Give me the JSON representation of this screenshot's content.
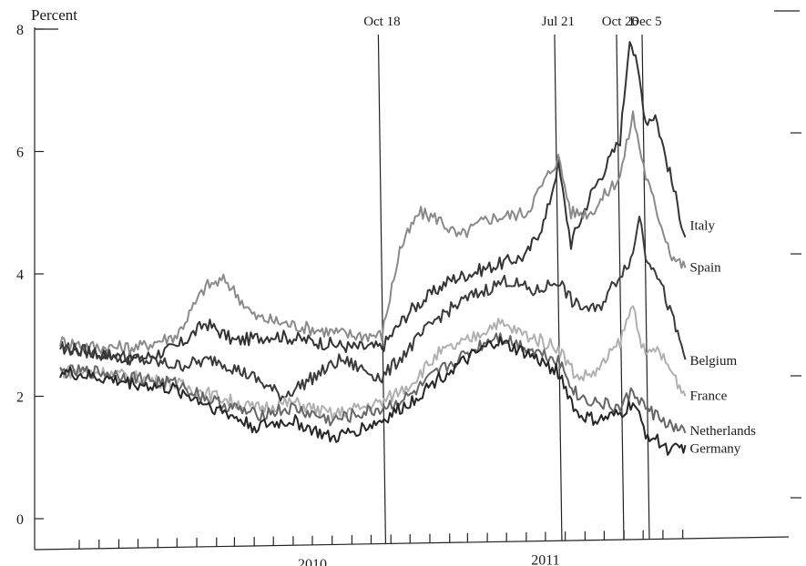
{
  "chart_data": {
    "type": "line",
    "title": "",
    "ylabel": "Percent",
    "xlabel": "",
    "ylim": [
      0,
      8
    ],
    "yticks": [
      0,
      2,
      4,
      6,
      8
    ],
    "xlim": [
      "2009-06-01",
      "2012-03-01"
    ],
    "xticks": [
      "2010",
      "2011"
    ],
    "grid": false,
    "legend": "labels at end of lines (right)",
    "events": [
      {
        "label": "Oct 18",
        "date": "2010-10-18"
      },
      {
        "label": "Jul 21",
        "date": "2011-07-21"
      },
      {
        "label": "Oct 26",
        "date": "2011-10-26"
      },
      {
        "label": "Dec 5",
        "date": "2011-12-05"
      }
    ],
    "series": [
      {
        "name": "Italy",
        "color": "#333333",
        "points": [
          [
            "2009-06-01",
            2.8
          ],
          [
            "2009-08-01",
            2.7
          ],
          [
            "2009-10-01",
            2.6
          ],
          [
            "2009-12-01",
            2.8
          ],
          [
            "2010-01-15",
            3.2
          ],
          [
            "2010-03-01",
            2.9
          ],
          [
            "2010-05-01",
            3.0
          ],
          [
            "2010-07-01",
            2.9
          ],
          [
            "2010-09-01",
            2.8
          ],
          [
            "2010-10-18",
            2.8
          ],
          [
            "2010-12-01",
            3.4
          ],
          [
            "2011-02-01",
            3.9
          ],
          [
            "2011-04-01",
            4.1
          ],
          [
            "2011-06-01",
            4.3
          ],
          [
            "2011-07-01",
            4.9
          ],
          [
            "2011-07-21",
            5.8
          ],
          [
            "2011-08-10",
            4.5
          ],
          [
            "2011-09-10",
            5.3
          ],
          [
            "2011-10-01",
            5.7
          ],
          [
            "2011-10-26",
            6.2
          ],
          [
            "2011-11-10",
            7.9
          ],
          [
            "2011-11-25",
            7.2
          ],
          [
            "2011-12-05",
            6.5
          ],
          [
            "2011-12-20",
            6.6
          ],
          [
            "2012-01-15",
            5.5
          ],
          [
            "2012-02-05",
            4.6
          ]
        ]
      },
      {
        "name": "Spain",
        "color": "#8a8a8a",
        "points": [
          [
            "2009-06-01",
            2.9
          ],
          [
            "2009-08-01",
            2.8
          ],
          [
            "2009-10-01",
            2.8
          ],
          [
            "2009-12-01",
            3.0
          ],
          [
            "2010-01-15",
            3.8
          ],
          [
            "2010-02-15",
            3.9
          ],
          [
            "2010-04-01",
            3.3
          ],
          [
            "2010-05-15",
            3.2
          ],
          [
            "2010-07-01",
            3.1
          ],
          [
            "2010-09-01",
            3.0
          ],
          [
            "2010-10-18",
            3.0
          ],
          [
            "2010-11-15",
            4.4
          ],
          [
            "2010-12-15",
            5.0
          ],
          [
            "2011-01-15",
            4.9
          ],
          [
            "2011-02-15",
            4.6
          ],
          [
            "2011-04-01",
            4.9
          ],
          [
            "2011-06-01",
            5.0
          ],
          [
            "2011-07-21",
            5.9
          ],
          [
            "2011-08-10",
            5.0
          ],
          [
            "2011-09-10",
            5.0
          ],
          [
            "2011-10-26",
            5.6
          ],
          [
            "2011-11-15",
            6.6
          ],
          [
            "2011-12-05",
            5.6
          ],
          [
            "2011-12-20",
            5.1
          ],
          [
            "2012-01-15",
            4.3
          ],
          [
            "2012-02-05",
            4.1
          ]
        ]
      },
      {
        "name": "Belgium",
        "color": "#3a3a3a",
        "points": [
          [
            "2009-06-01",
            2.8
          ],
          [
            "2009-08-01",
            2.7
          ],
          [
            "2009-10-01",
            2.6
          ],
          [
            "2009-12-01",
            2.5
          ],
          [
            "2010-02-01",
            2.6
          ],
          [
            "2010-04-01",
            2.3
          ],
          [
            "2010-05-15",
            2.0
          ],
          [
            "2010-07-01",
            2.3
          ],
          [
            "2010-08-15",
            2.6
          ],
          [
            "2010-10-18",
            2.3
          ],
          [
            "2010-12-01",
            2.8
          ],
          [
            "2011-01-15",
            3.3
          ],
          [
            "2011-03-01",
            3.6
          ],
          [
            "2011-05-01",
            3.9
          ],
          [
            "2011-06-15",
            3.7
          ],
          [
            "2011-07-21",
            3.9
          ],
          [
            "2011-08-15",
            3.5
          ],
          [
            "2011-09-20",
            3.4
          ],
          [
            "2011-10-26",
            4.0
          ],
          [
            "2011-11-15",
            4.3
          ],
          [
            "2011-11-25",
            5.0
          ],
          [
            "2011-12-05",
            4.3
          ],
          [
            "2011-12-20",
            4.1
          ],
          [
            "2012-01-15",
            3.3
          ],
          [
            "2012-02-05",
            2.6
          ]
        ]
      },
      {
        "name": "France",
        "color": "#b0b0b0",
        "points": [
          [
            "2009-06-01",
            2.4
          ],
          [
            "2009-08-01",
            2.4
          ],
          [
            "2009-10-01",
            2.3
          ],
          [
            "2009-12-01",
            2.2
          ],
          [
            "2010-02-01",
            2.0
          ],
          [
            "2010-04-01",
            1.8
          ],
          [
            "2010-06-01",
            1.9
          ],
          [
            "2010-08-01",
            1.7
          ],
          [
            "2010-10-18",
            1.9
          ],
          [
            "2010-12-01",
            2.2
          ],
          [
            "2011-01-15",
            2.7
          ],
          [
            "2011-03-01",
            2.9
          ],
          [
            "2011-04-15",
            3.2
          ],
          [
            "2011-06-01",
            3.0
          ],
          [
            "2011-07-21",
            2.8
          ],
          [
            "2011-08-20",
            2.3
          ],
          [
            "2011-09-20",
            2.4
          ],
          [
            "2011-10-26",
            2.9
          ],
          [
            "2011-11-15",
            3.5
          ],
          [
            "2011-12-05",
            2.6
          ],
          [
            "2011-12-20",
            2.8
          ],
          [
            "2012-01-15",
            2.4
          ],
          [
            "2012-02-05",
            2.0
          ]
        ]
      },
      {
        "name": "Netherlands",
        "color": "#666666",
        "points": [
          [
            "2009-06-01",
            2.4
          ],
          [
            "2009-08-01",
            2.4
          ],
          [
            "2009-10-01",
            2.3
          ],
          [
            "2009-12-01",
            2.2
          ],
          [
            "2010-02-01",
            1.9
          ],
          [
            "2010-04-01",
            1.7
          ],
          [
            "2010-06-01",
            1.8
          ],
          [
            "2010-08-01",
            1.6
          ],
          [
            "2010-10-18",
            1.8
          ],
          [
            "2010-12-01",
            2.0
          ],
          [
            "2011-01-15",
            2.4
          ],
          [
            "2011-03-01",
            2.7
          ],
          [
            "2011-04-15",
            3.0
          ],
          [
            "2011-06-01",
            2.8
          ],
          [
            "2011-07-21",
            2.6
          ],
          [
            "2011-08-20",
            2.0
          ],
          [
            "2011-09-20",
            1.9
          ],
          [
            "2011-10-26",
            1.8
          ],
          [
            "2011-11-15",
            2.1
          ],
          [
            "2011-12-05",
            1.8
          ],
          [
            "2011-12-20",
            1.7
          ],
          [
            "2012-01-15",
            1.5
          ],
          [
            "2012-02-05",
            1.4
          ]
        ]
      },
      {
        "name": "Germany",
        "color": "#262626",
        "points": [
          [
            "2009-06-01",
            2.4
          ],
          [
            "2009-08-01",
            2.3
          ],
          [
            "2009-10-01",
            2.2
          ],
          [
            "2009-12-01",
            2.1
          ],
          [
            "2010-02-01",
            1.8
          ],
          [
            "2010-04-01",
            1.5
          ],
          [
            "2010-06-01",
            1.6
          ],
          [
            "2010-08-01",
            1.3
          ],
          [
            "2010-10-18",
            1.6
          ],
          [
            "2010-12-01",
            1.9
          ],
          [
            "2011-01-15",
            2.3
          ],
          [
            "2011-03-01",
            2.6
          ],
          [
            "2011-04-15",
            2.9
          ],
          [
            "2011-06-01",
            2.7
          ],
          [
            "2011-07-21",
            2.4
          ],
          [
            "2011-08-20",
            1.7
          ],
          [
            "2011-09-20",
            1.6
          ],
          [
            "2011-10-26",
            1.7
          ],
          [
            "2011-11-15",
            1.9
          ],
          [
            "2011-12-05",
            1.4
          ],
          [
            "2011-12-20",
            1.3
          ],
          [
            "2012-01-15",
            1.1
          ],
          [
            "2012-02-05",
            1.2
          ]
        ]
      }
    ]
  }
}
